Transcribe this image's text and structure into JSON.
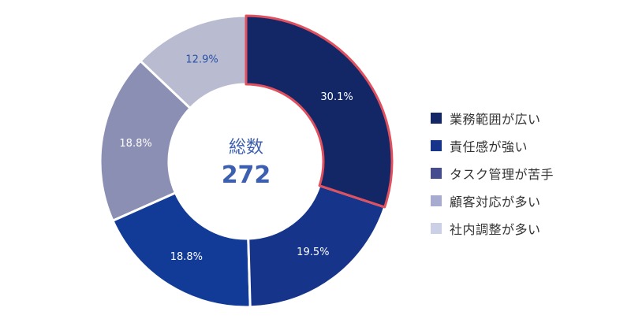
{
  "chart_data": {
    "type": "pie",
    "center_label": "総数",
    "center_value": "272",
    "categories": [
      "業務範囲が広い",
      "責任感が強い",
      "タスク管理が苦手",
      "顧客対応が多い",
      "社内調整が多い"
    ],
    "values": [
      30.1,
      19.5,
      18.8,
      18.8,
      12.9
    ],
    "value_labels": [
      "30.1%",
      "19.5%",
      "18.8%",
      "18.8%",
      "12.9%"
    ],
    "slice_colors": [
      "#132766",
      "#15348a",
      "#123b98",
      "#8c8fb4",
      "#b9bbd0"
    ],
    "slice_label_colors": [
      "#ffffff",
      "#ffffff",
      "#ffffff",
      "#ffffff",
      "#2a50a8"
    ],
    "legend_colors": [
      "#132766",
      "#15348a",
      "#454d8e",
      "#a7abd0",
      "#ccd0e6"
    ],
    "highlight_color": "#e0505e",
    "center_text_color": "#3d5fb0",
    "legend_placement": "right"
  }
}
